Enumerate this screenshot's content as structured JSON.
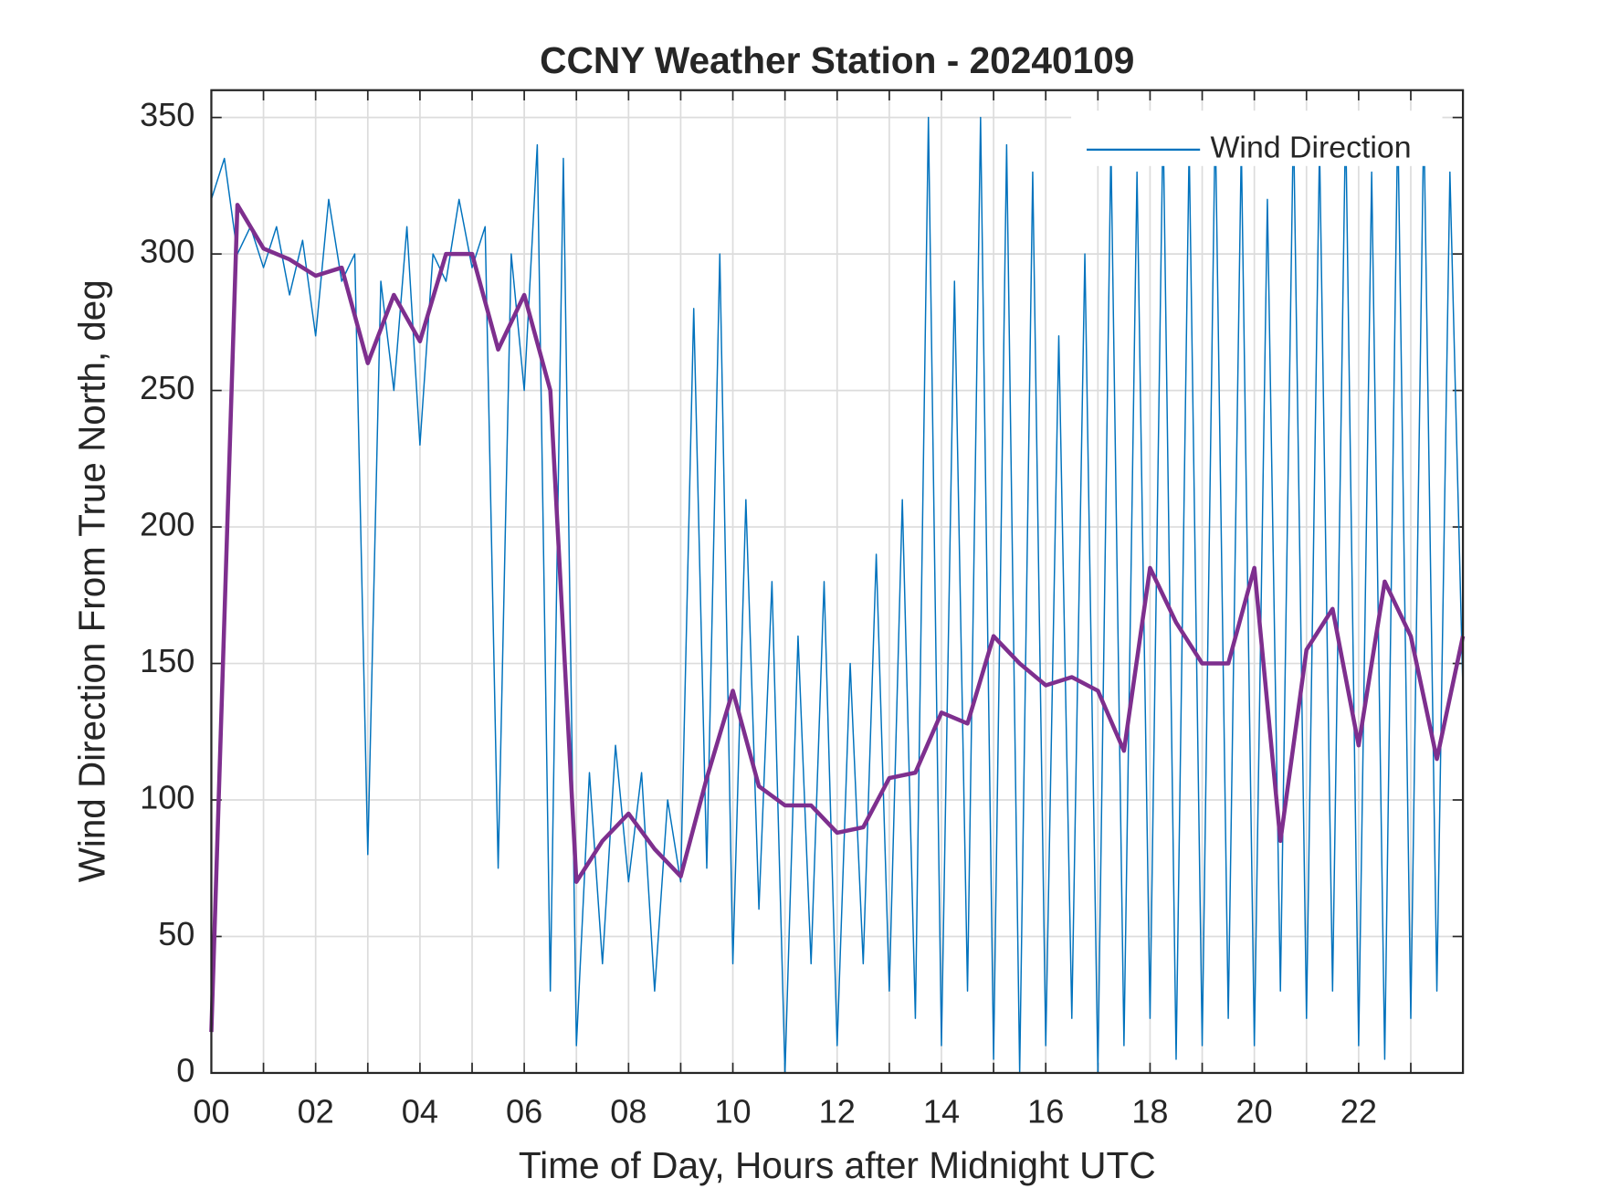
{
  "chart_data": {
    "type": "line",
    "title": "CCNY Weather Station - 20240109",
    "xlabel": "Time of Day, Hours after Midnight UTC",
    "ylabel": "Wind Direction From True North, deg",
    "xlim": [
      0,
      24
    ],
    "ylim": [
      0,
      360
    ],
    "xticks": [
      {
        "value": 0,
        "label": "00"
      },
      {
        "value": 2,
        "label": "02"
      },
      {
        "value": 4,
        "label": "04"
      },
      {
        "value": 6,
        "label": "06"
      },
      {
        "value": 8,
        "label": "08"
      },
      {
        "value": 10,
        "label": "10"
      },
      {
        "value": 12,
        "label": "12"
      },
      {
        "value": 14,
        "label": "14"
      },
      {
        "value": 16,
        "label": "16"
      },
      {
        "value": 18,
        "label": "18"
      },
      {
        "value": 20,
        "label": "20"
      },
      {
        "value": 22,
        "label": "22"
      }
    ],
    "xminorticks": [
      1,
      3,
      5,
      7,
      9,
      11,
      13,
      15,
      17,
      19,
      21,
      23
    ],
    "yticks": [
      0,
      50,
      100,
      150,
      200,
      250,
      300,
      350
    ],
    "grid": true,
    "legend": "northeast",
    "series": [
      {
        "name": "Wind Direction",
        "color": "#0072bd",
        "width": 1.3,
        "x": [
          0,
          0.25,
          0.5,
          0.75,
          1,
          1.25,
          1.5,
          1.75,
          2,
          2.25,
          2.5,
          2.75,
          3,
          3.25,
          3.5,
          3.75,
          4,
          4.25,
          4.5,
          4.75,
          5,
          5.25,
          5.5,
          5.75,
          6,
          6.25,
          6.5,
          6.75,
          7,
          7.25,
          7.5,
          7.75,
          8,
          8.25,
          8.5,
          8.75,
          9,
          9.25,
          9.5,
          9.75,
          10,
          10.25,
          10.5,
          10.75,
          11,
          11.25,
          11.5,
          11.75,
          12,
          12.25,
          12.5,
          12.75,
          13,
          13.25,
          13.5,
          13.75,
          14,
          14.25,
          14.5,
          14.75,
          15,
          15.25,
          15.5,
          15.75,
          16,
          16.25,
          16.5,
          16.75,
          17,
          17.25,
          17.5,
          17.75,
          18,
          18.25,
          18.5,
          18.75,
          19,
          19.25,
          19.5,
          19.75,
          20,
          20.25,
          20.5,
          20.75,
          21,
          21.25,
          21.5,
          21.75,
          22,
          22.25,
          22.5,
          22.75,
          23,
          23.25,
          23.5,
          23.75,
          24
        ],
        "values": [
          320,
          335,
          300,
          310,
          295,
          310,
          285,
          305,
          270,
          320,
          290,
          300,
          80,
          290,
          250,
          310,
          230,
          300,
          290,
          320,
          295,
          310,
          75,
          300,
          250,
          340,
          30,
          335,
          10,
          110,
          40,
          120,
          70,
          110,
          30,
          100,
          70,
          280,
          75,
          300,
          40,
          210,
          60,
          180,
          0,
          160,
          40,
          180,
          10,
          150,
          40,
          190,
          30,
          210,
          20,
          350,
          10,
          290,
          30,
          350,
          5,
          340,
          0,
          330,
          10,
          270,
          20,
          300,
          0,
          340,
          10,
          330,
          20,
          350,
          5,
          340,
          10,
          350,
          20,
          340,
          10,
          320,
          30,
          350,
          20,
          340,
          30,
          350,
          10,
          330,
          5,
          350,
          20,
          350,
          30,
          330,
          140
        ]
      },
      {
        "color": "#7e2f8e",
        "width": 4,
        "x": [
          0,
          0.5,
          1,
          1.5,
          2,
          2.5,
          3,
          3.5,
          4,
          4.5,
          5,
          5.5,
          6,
          6.5,
          7,
          7.5,
          8,
          8.5,
          9,
          9.5,
          10,
          10.5,
          11,
          11.5,
          12,
          12.5,
          13,
          13.5,
          14,
          14.5,
          15,
          15.5,
          16,
          16.5,
          17,
          17.5,
          18,
          18.5,
          19,
          19.5,
          20,
          20.5,
          21,
          21.5,
          22,
          22.5,
          23,
          23.5,
          24
        ],
        "values": [
          15,
          318,
          302,
          298,
          292,
          295,
          260,
          285,
          268,
          300,
          300,
          265,
          285,
          250,
          70,
          85,
          95,
          82,
          72,
          108,
          140,
          105,
          98,
          98,
          88,
          90,
          108,
          110,
          132,
          128,
          160,
          150,
          142,
          145,
          140,
          118,
          185,
          165,
          150,
          150,
          185,
          85,
          155,
          170,
          120,
          180,
          160,
          115,
          160
        ]
      }
    ]
  }
}
